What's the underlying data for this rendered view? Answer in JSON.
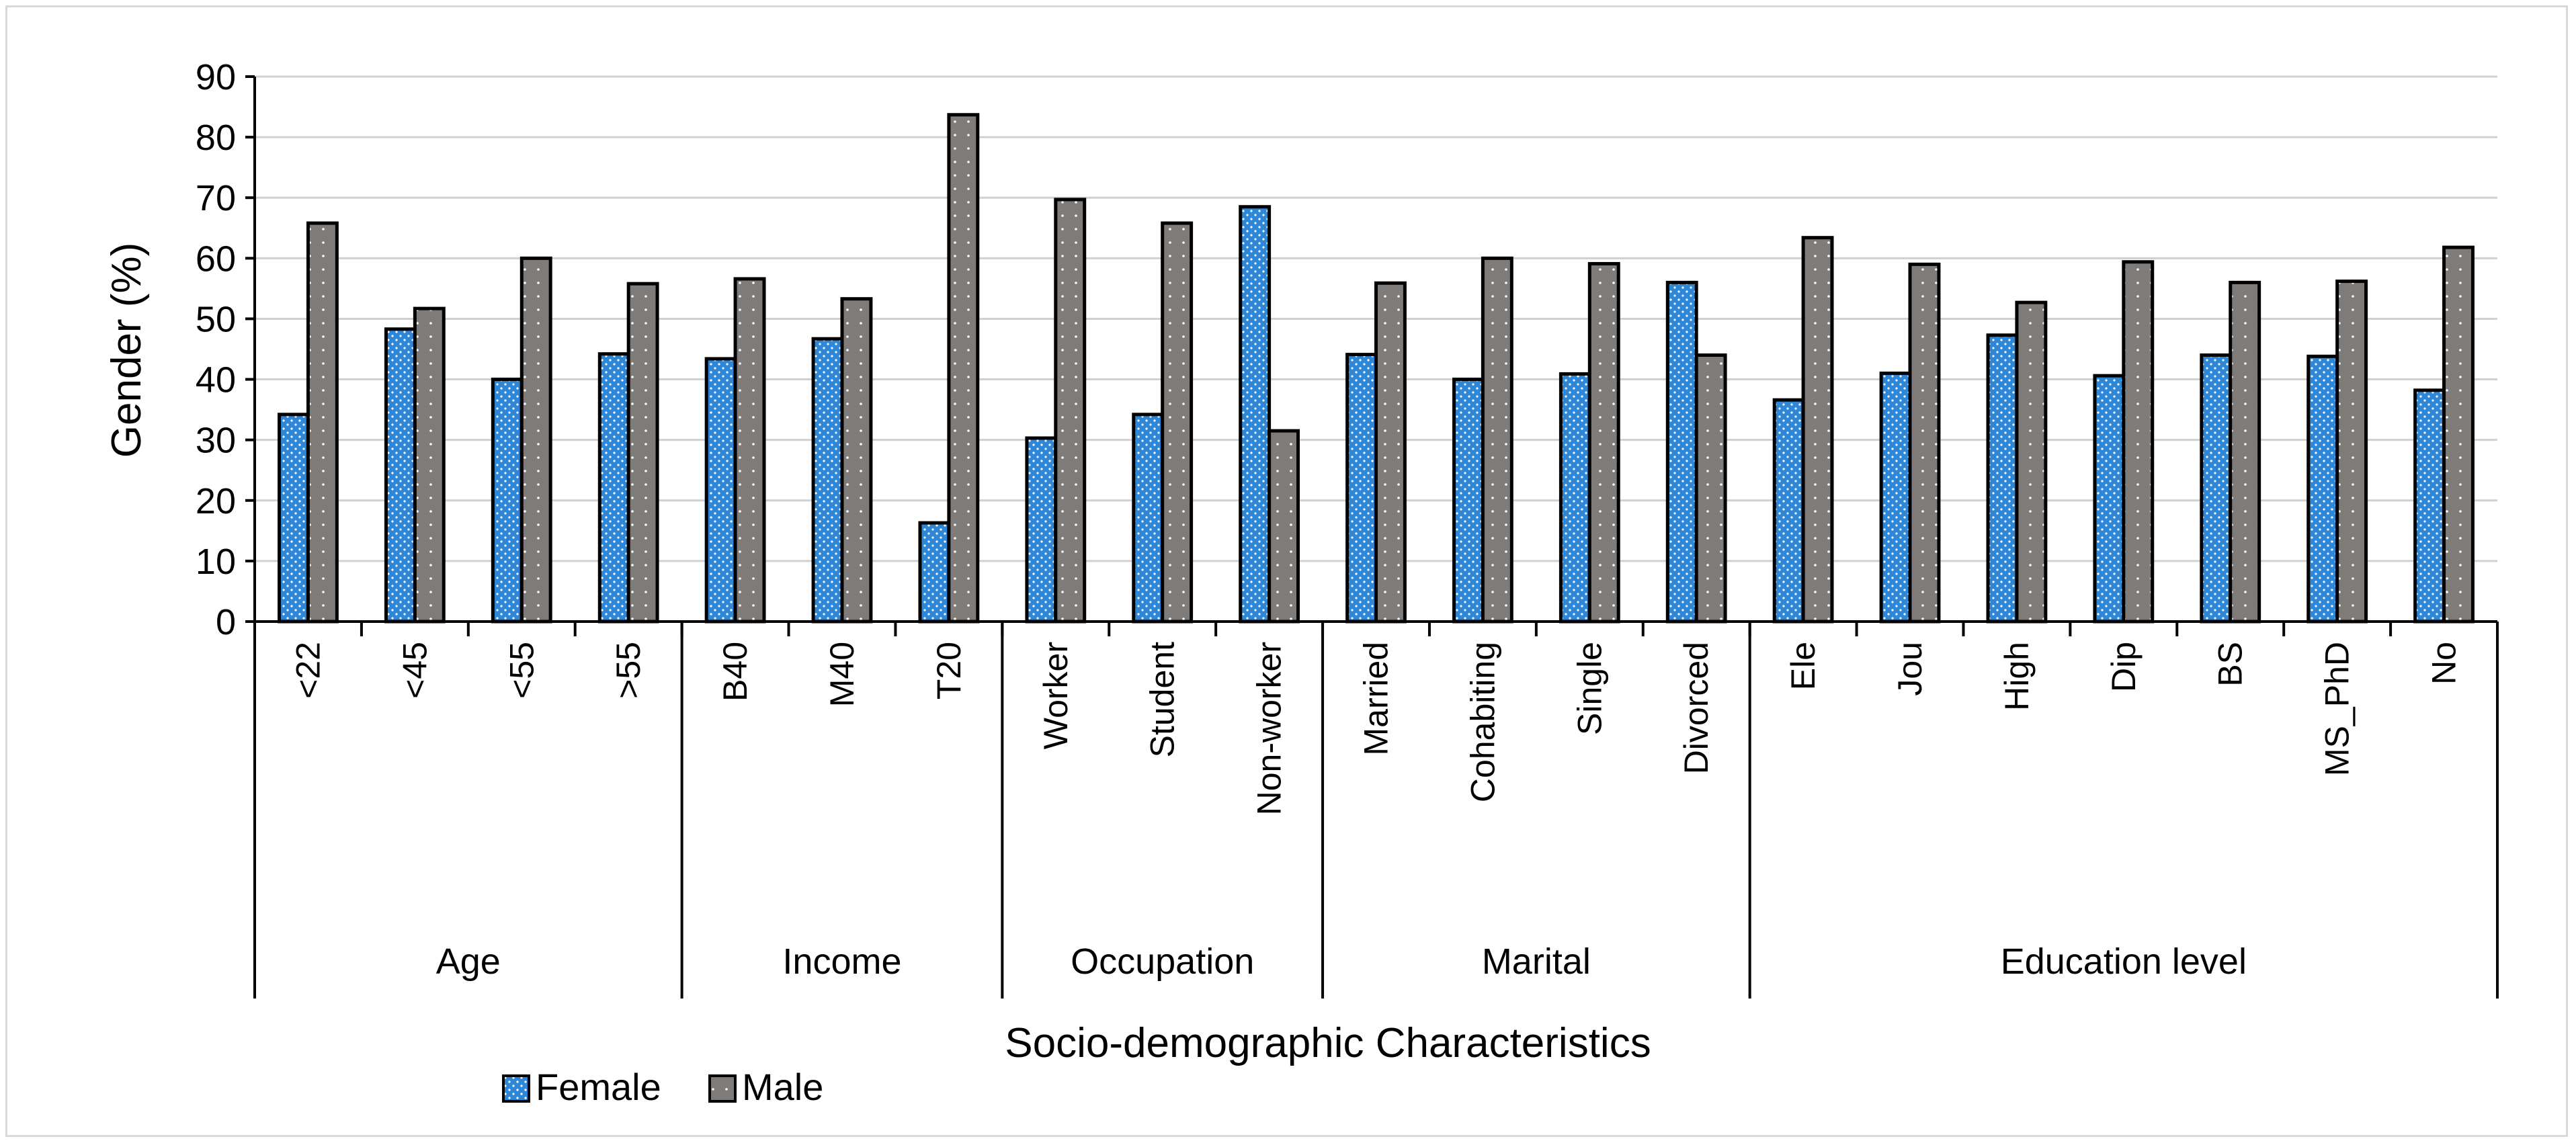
{
  "chart_data": {
    "type": "bar",
    "title": "",
    "ylabel": "Gender (%)",
    "xlabel": "Socio-demographic Characteristics",
    "ylim": [
      0,
      90
    ],
    "yticks": [
      0,
      10,
      20,
      30,
      40,
      50,
      60,
      70,
      80,
      90
    ],
    "grid": true,
    "legend_position": "bottom-left",
    "groups": [
      {
        "name": "Age",
        "categories": [
          "<22",
          "<45",
          "<55",
          ">55"
        ]
      },
      {
        "name": "Income",
        "categories": [
          "B40",
          "M40",
          "T20"
        ]
      },
      {
        "name": "Occupation",
        "categories": [
          "Worker",
          "Student",
          "Non-worker"
        ]
      },
      {
        "name": "Marital",
        "categories": [
          "Married",
          "Cohabiting",
          "Single",
          "Divorced"
        ]
      },
      {
        "name": "Education level",
        "categories": [
          "Ele",
          "Jou",
          "High",
          "Dip",
          "BS",
          "MS_PhD",
          "No"
        ]
      }
    ],
    "categories": [
      "<22",
      "<45",
      "<55",
      ">55",
      "B40",
      "M40",
      "T20",
      "Worker",
      "Student",
      "Non-worker",
      "Married",
      "Cohabiting",
      "Single",
      "Divorced",
      "Ele",
      "Jou",
      "High",
      "Dip",
      "BS",
      "MS_PhD",
      "No"
    ],
    "series": [
      {
        "name": "Female",
        "color": "#2e86d6",
        "values": [
          34.2,
          48.3,
          40.0,
          44.2,
          43.4,
          46.7,
          16.3,
          30.3,
          34.2,
          68.5,
          44.1,
          40.0,
          40.9,
          56.0,
          36.6,
          41.0,
          47.3,
          40.6,
          44.0,
          43.8,
          38.2
        ]
      },
      {
        "name": "Male",
        "color": "#7f7b79",
        "values": [
          65.8,
          51.7,
          60.0,
          55.8,
          56.6,
          53.3,
          83.7,
          69.7,
          65.8,
          31.5,
          55.9,
          60.0,
          59.1,
          44.0,
          63.4,
          59.0,
          52.7,
          59.4,
          56.0,
          56.2,
          61.8
        ]
      }
    ]
  }
}
